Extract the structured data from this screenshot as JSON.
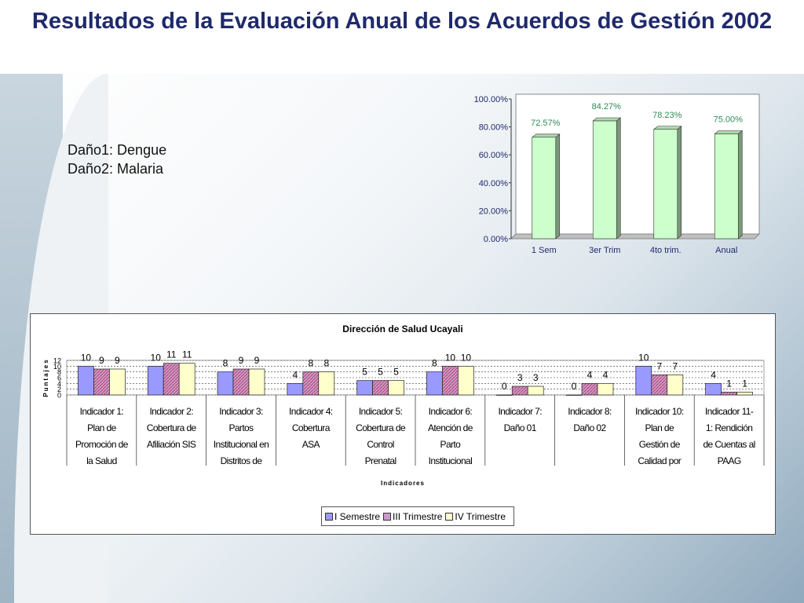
{
  "title": "Resultados de la Evaluación Anual de los Acuerdos de Gestión 2002",
  "notes": [
    "Daño1: Dengue",
    "Daño2: Malaria"
  ],
  "chart_data": [
    {
      "type": "bar",
      "categories": [
        "1 Sem",
        "3er Trim",
        "4to trim.",
        "Anual"
      ],
      "values": [
        72.57,
        84.27,
        78.23,
        75.0
      ],
      "value_labels": [
        "72.57%",
        "84.27%",
        "78.23%",
        "75.00%"
      ],
      "ytick_labels": [
        "0.00%",
        "20.00%",
        "40.00%",
        "60.00%",
        "80.00%",
        "100.00%"
      ],
      "ylim": [
        0,
        100
      ],
      "bar_color": "#ccffcc",
      "label_color": "#2e8b57",
      "title": "",
      "xlabel": "",
      "ylabel": "",
      "grid": false,
      "legend": false
    },
    {
      "type": "bar",
      "title": "Dirección de Salud Ucayali",
      "xlabel": "Indicadores",
      "ylabel": "Puntajes",
      "ylim": [
        0,
        12
      ],
      "ytick_labels": [
        "0",
        "2",
        "4",
        "6",
        "8",
        "10",
        "12"
      ],
      "grid": true,
      "legend_position": "bottom",
      "categories": [
        [
          "Indicador 1:",
          "Plan de",
          "Promoción de",
          "la Salud"
        ],
        [
          "Indicador 2:",
          "Cobertura de",
          "Afiliación SIS"
        ],
        [
          "Indicador 3:",
          "Partos",
          "Institucional en",
          "Distritos de"
        ],
        [
          "Indicador 4:",
          "Cobertura",
          "ASA"
        ],
        [
          "Indicador 5:",
          "Cobertura de",
          "Control",
          "Prenatal"
        ],
        [
          "Indicador 6:",
          "Atención de",
          "Parto",
          "Institucional"
        ],
        [
          "Indicador 7:",
          "Daño 01"
        ],
        [
          "Indicador 8:",
          "Daño 02"
        ],
        [
          "Indicador 10:",
          "Plan de",
          "Gestión de",
          "Calidad por"
        ],
        [
          "Indicador 11-",
          "1: Rendición",
          "de Cuentas al",
          "PAAG"
        ]
      ],
      "series": [
        {
          "name": "I Semestre",
          "values": [
            10,
            10,
            8,
            4,
            5,
            8,
            0,
            0,
            10,
            4
          ],
          "color": "#9999ff"
        },
        {
          "name": "III Trimestre",
          "values": [
            9,
            11,
            9,
            8,
            5,
            10,
            3,
            4,
            7,
            1
          ],
          "color": "#cc99cc"
        },
        {
          "name": "IV Trimestre",
          "values": [
            9,
            11,
            9,
            8,
            5,
            10,
            3,
            4,
            7,
            1
          ],
          "color": "#ffffcc"
        }
      ]
    }
  ]
}
